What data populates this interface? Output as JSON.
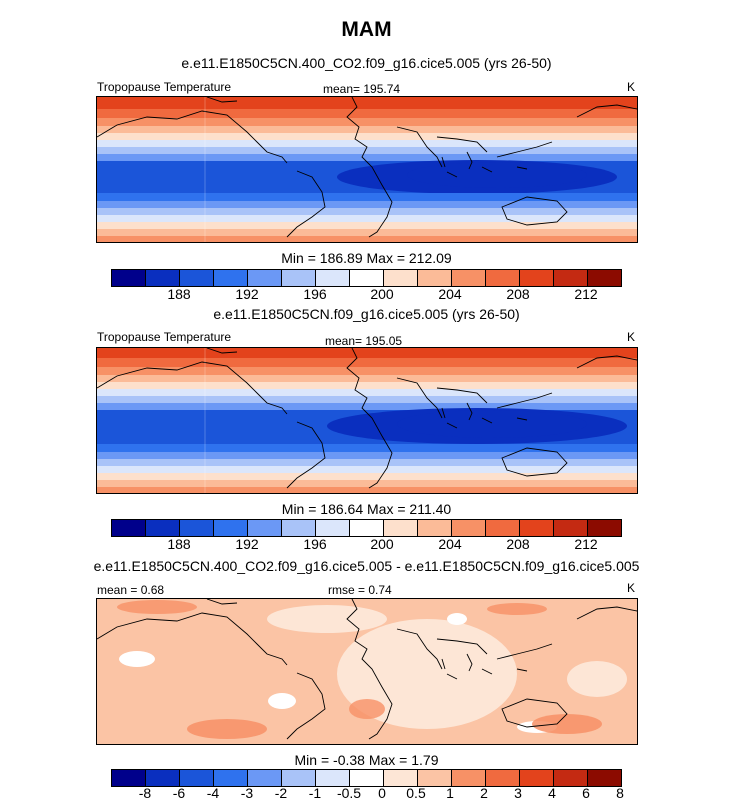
{
  "title": "MAM",
  "panels": [
    {
      "subtitle": "e.e11.E1850C5CN.400_CO2.f09_g16.cice5.005 (yrs 26-50)",
      "left_label": "Tropopause Temperature",
      "center_label": "mean= 195.74",
      "units": "K",
      "minmax": "Min = 186.89 Max = 212.09",
      "colorbar_ticks": [
        "188",
        "192",
        "196",
        "200",
        "204",
        "208",
        "212"
      ]
    },
    {
      "subtitle": "e.e11.E1850C5CN.f09_g16.cice5.005 (yrs 26-50)",
      "left_label": "Tropopause Temperature",
      "center_label": "mean= 195.05",
      "units": "K",
      "minmax": "Min = 186.64 Max = 211.40",
      "colorbar_ticks": [
        "188",
        "192",
        "196",
        "200",
        "204",
        "208",
        "212"
      ]
    },
    {
      "subtitle": "e.e11.E1850C5CN.400_CO2.f09_g16.cice5.005 - e.e11.E1850C5CN.f09_g16.cice5.005",
      "left_label": "mean =   0.68",
      "center_label": "rmse =   0.74",
      "units": "K",
      "minmax": "Min =  -0.38 Max =   1.79",
      "colorbar_ticks": [
        "-8",
        "-6",
        "-4",
        "-3",
        "-2",
        "-1",
        "-0.5",
        "0",
        "0.5",
        "1",
        "2",
        "3",
        "4",
        "6",
        "8"
      ]
    }
  ],
  "colors": {
    "abs_scale": [
      "#00008b",
      "#0a2fbf",
      "#1b55d9",
      "#2f72ee",
      "#6b98f5",
      "#a9c3f8",
      "#dbe6fb",
      "#ffffff",
      "#fde0cc",
      "#fbbb98",
      "#f79166",
      "#f06a3f",
      "#e3431c",
      "#c42a12",
      "#8c0b00"
    ],
    "diff_scale": [
      "#00008b",
      "#0a2fbf",
      "#1b55d9",
      "#2f72ee",
      "#6b98f5",
      "#a9c3f8",
      "#dbe6fb",
      "#ffffff",
      "#fde6d6",
      "#fbc4a5",
      "#f79166",
      "#f06a3f",
      "#e3431c",
      "#c42a12",
      "#8c0b00"
    ]
  }
}
